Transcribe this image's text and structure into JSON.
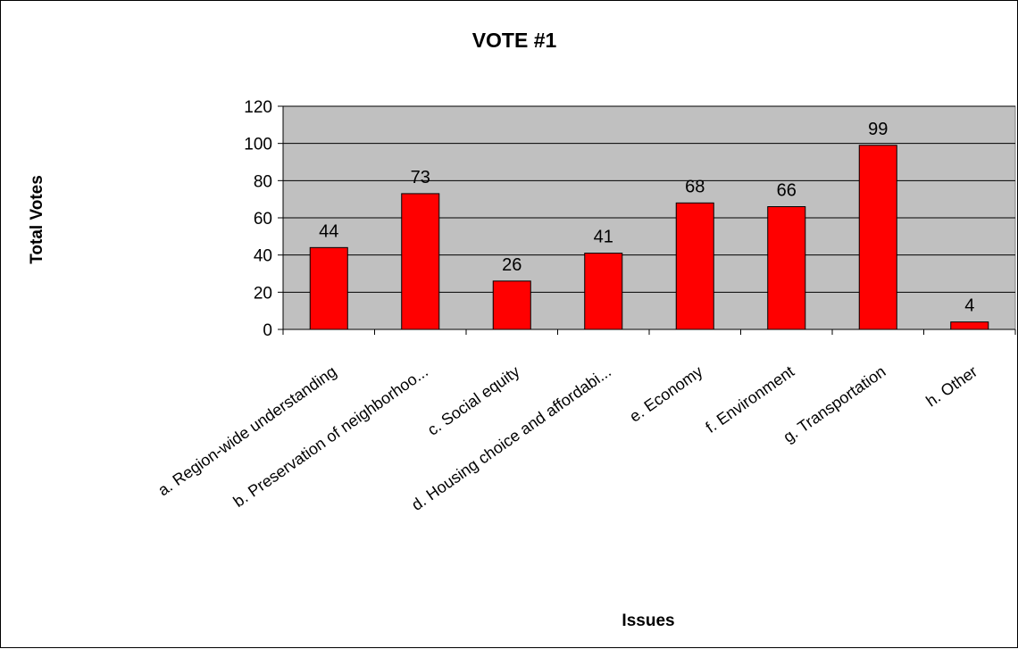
{
  "chart_data": {
    "type": "bar",
    "title": "VOTE #1",
    "xlabel": "Issues",
    "ylabel": "Total Votes",
    "categories": [
      "a. Region-wide understanding",
      "b. Preservation of neighborhoo...",
      "c. Social equity",
      "d. Housing choice and affordabi...",
      "e. Economy",
      "f. Environment",
      "g. Transportation",
      "h. Other"
    ],
    "values": [
      44,
      73,
      26,
      41,
      68,
      66,
      99,
      4
    ],
    "ylim": [
      0,
      120
    ],
    "yticks": [
      "0",
      "20",
      "40",
      "60",
      "80",
      "100",
      "120"
    ],
    "grid": true,
    "legend": "none",
    "colors": {
      "bar": "#ff0000",
      "plot_background": "#c0c0c0",
      "gridline": "#000000"
    }
  }
}
